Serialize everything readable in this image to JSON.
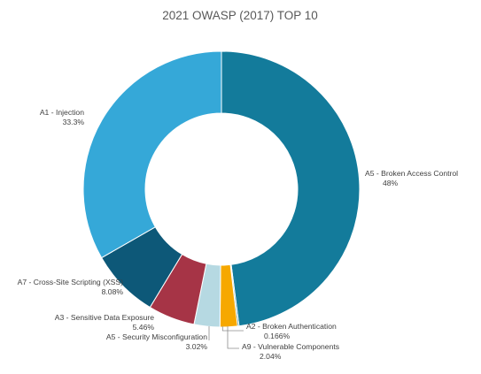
{
  "chart_data": {
    "type": "pie",
    "title": "2021 OWASP (2017) TOP 10",
    "slices": [
      {
        "name": "A5 - Broken Access Control",
        "value": 48,
        "value_label": "48%",
        "color": "#137b9b"
      },
      {
        "name": "A2 - Broken Authentication",
        "value": 0.166,
        "value_label": "0.166%",
        "color": "#1a7a92"
      },
      {
        "name": "A9 - Vulnerable Components",
        "value": 2.04,
        "value_label": "2.04%",
        "color": "#f6a800"
      },
      {
        "name": "A5 - Security Misconfiguration",
        "value": 3.02,
        "value_label": "3.02%",
        "color": "#b6d9e2"
      },
      {
        "name": "A3 - Sensitive Data Exposure",
        "value": 5.46,
        "value_label": "5.46%",
        "color": "#a63446"
      },
      {
        "name": "A7 - Cross-Site Scripting (XSS)",
        "value": 8.08,
        "value_label": "8.08%",
        "color": "#0d5878"
      },
      {
        "name": "A1 - Injection",
        "value": 33.3,
        "value_label": "33.3%",
        "color": "#35a8d8"
      }
    ]
  }
}
